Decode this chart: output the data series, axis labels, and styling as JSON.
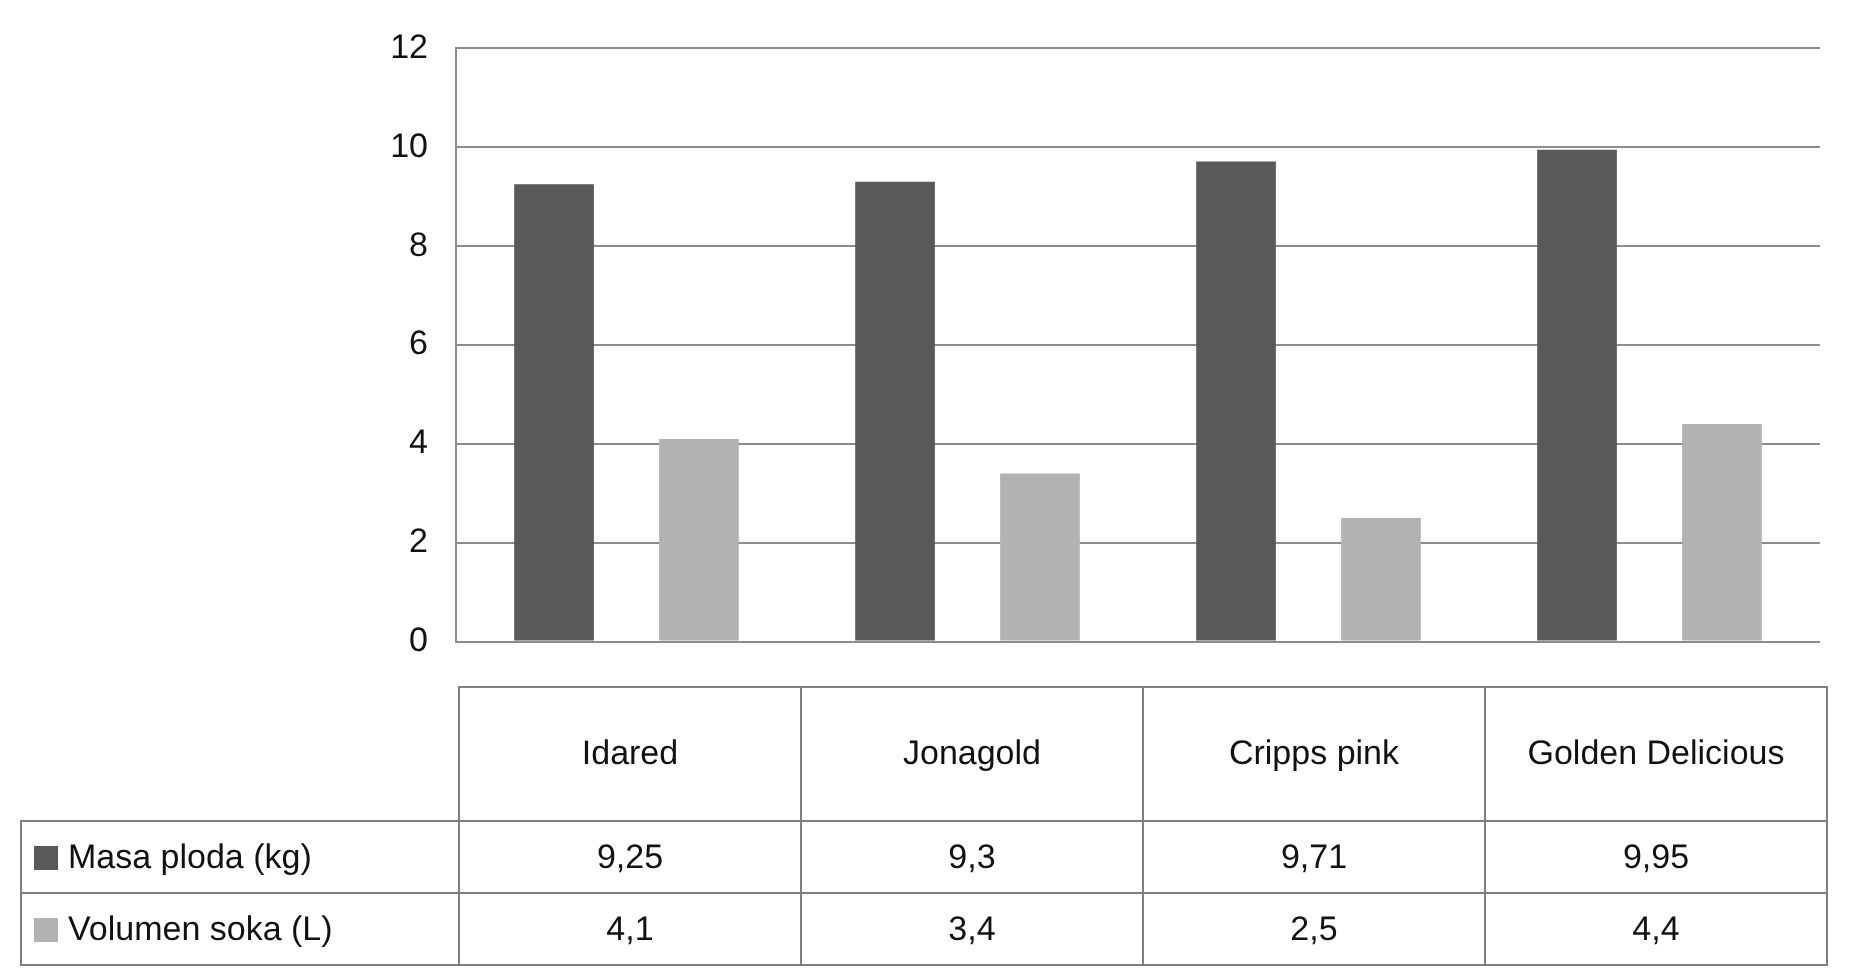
{
  "chart_data": {
    "type": "bar",
    "categories": [
      "Idared",
      "Jonagold",
      "Cripps pink",
      "Golden Delicious"
    ],
    "series": [
      {
        "name": "Masa ploda (kg)",
        "color": "#595959",
        "values": [
          9.25,
          9.3,
          9.71,
          9.95
        ],
        "value_labels": [
          "9,25",
          "9,3",
          "9,71",
          "9,95"
        ]
      },
      {
        "name": "Volumen soka (L)",
        "color": "#b2b2b2",
        "values": [
          4.1,
          3.4,
          2.5,
          4.4
        ],
        "value_labels": [
          "4,1",
          "3,4",
          "2,5",
          "4,4"
        ]
      }
    ],
    "ylim": [
      0,
      12
    ],
    "yticks": [
      0,
      2,
      4,
      6,
      8,
      10,
      12
    ],
    "grid": "y",
    "legend": "bottom"
  }
}
